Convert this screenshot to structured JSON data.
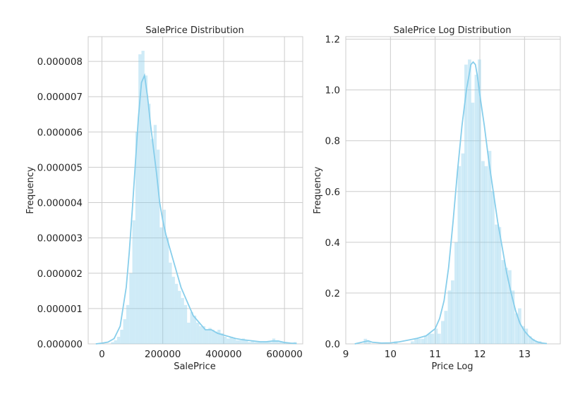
{
  "chart_data": [
    {
      "type": "histogram",
      "title": "SalePrice Distribution",
      "xlabel": "SalePrice",
      "ylabel": "Frequency",
      "xlim": [
        -45000,
        660000
      ],
      "ylim": [
        0,
        8.7e-06
      ],
      "xticks": [
        0,
        200000,
        400000,
        600000
      ],
      "xtick_labels": [
        "0",
        "200000",
        "400000",
        "600000"
      ],
      "yticks": [
        0,
        1e-06,
        2e-06,
        3e-06,
        4e-06,
        5e-06,
        6e-06,
        7e-06,
        8e-06
      ],
      "ytick_labels": [
        "0.000000",
        "0.000001",
        "0.000002",
        "0.000003",
        "0.000004",
        "0.000005",
        "0.000006",
        "0.000007",
        "0.000008"
      ],
      "grid": true,
      "color": "#87ceeb",
      "bin_width": 10000,
      "bins_x": [
        35000,
        45000,
        55000,
        65000,
        75000,
        85000,
        95000,
        105000,
        115000,
        125000,
        135000,
        145000,
        155000,
        165000,
        175000,
        185000,
        195000,
        205000,
        215000,
        225000,
        235000,
        245000,
        255000,
        265000,
        275000,
        285000,
        295000,
        305000,
        315000,
        325000,
        335000,
        345000,
        355000,
        365000,
        375000,
        385000,
        395000,
        405000,
        415000,
        425000,
        435000,
        445000,
        455000,
        465000,
        475000,
        485000,
        495000,
        505000,
        515000,
        525000,
        535000,
        545000,
        555000,
        565000,
        575000,
        585000,
        595000,
        605000,
        615000,
        625000,
        635000,
        645000,
        655000
      ],
      "bins_y": [
        5e-08,
        1e-07,
        2e-07,
        4e-07,
        7e-07,
        1.1e-06,
        2e-06,
        3.5e-06,
        6e-06,
        8.2e-06,
        8.3e-06,
        7.6e-06,
        6.8e-06,
        5.8e-06,
        6.2e-06,
        5.5e-06,
        3.3e-06,
        3.8e-06,
        3e-06,
        2.3e-06,
        1.9e-06,
        1.7e-06,
        1.5e-06,
        1.3e-06,
        1.1e-06,
        6e-07,
        9e-07,
        8e-07,
        6e-07,
        5e-07,
        5e-07,
        4e-07,
        4.5e-07,
        4e-07,
        3.5e-07,
        4e-07,
        3e-07,
        2e-07,
        1.5e-07,
        2e-07,
        1.5e-07,
        1e-07,
        1e-07,
        1.5e-07,
        1e-07,
        5e-08,
        1e-07,
        5e-08,
        5e-08,
        5e-08,
        5e-08,
        5e-08,
        5e-08,
        1.5e-07,
        1e-07,
        5e-08,
        5e-08,
        5e-08,
        0,
        0,
        5e-08,
        0,
        0
      ],
      "kde_x": [
        -20000,
        0,
        20000,
        40000,
        60000,
        80000,
        90000,
        100000,
        110000,
        120000,
        130000,
        140000,
        150000,
        160000,
        170000,
        180000,
        190000,
        200000,
        210000,
        220000,
        240000,
        260000,
        280000,
        300000,
        320000,
        340000,
        360000,
        380000,
        400000,
        420000,
        440000,
        460000,
        480000,
        500000,
        520000,
        540000,
        560000,
        580000,
        600000,
        620000,
        640000
      ],
      "kde_y": [
        0,
        2e-08,
        5e-08,
        1.5e-07,
        5e-07,
        1.6e-06,
        2.6e-06,
        3.8e-06,
        5.1e-06,
        6.4e-06,
        7.4e-06,
        7.6e-06,
        7e-06,
        6.2e-06,
        5.5e-06,
        4.8e-06,
        4e-06,
        3.5e-06,
        3.1e-06,
        2.8e-06,
        2.2e-06,
        1.6e-06,
        1.2e-06,
        8e-07,
        6e-07,
        4e-07,
        4e-07,
        3e-07,
        2.5e-07,
        2e-07,
        1.5e-07,
        1.2e-07,
        1e-07,
        8e-08,
        6e-08,
        6e-08,
        8e-08,
        8e-08,
        4e-08,
        2e-08,
        1e-08
      ]
    },
    {
      "type": "histogram",
      "title": "SalePrice Log Distribution",
      "xlabel": "Price Log",
      "ylabel": "Frequency",
      "xlim": [
        9.0,
        13.8
      ],
      "ylim": [
        0,
        1.21
      ],
      "xticks": [
        9,
        10,
        11,
        12,
        13
      ],
      "xtick_labels": [
        "9",
        "10",
        "11",
        "12",
        "13"
      ],
      "yticks": [
        0.0,
        0.2,
        0.4,
        0.6,
        0.8,
        1.0,
        1.2
      ],
      "ytick_labels": [
        "0.0",
        "0.2",
        "0.4",
        "0.6",
        "0.8",
        "1.0",
        "1.2"
      ],
      "grid": true,
      "color": "#87ceeb",
      "bin_width": 0.075,
      "bins_x": [
        9.44,
        9.52,
        10.12,
        10.49,
        10.57,
        10.64,
        10.72,
        10.79,
        10.87,
        10.94,
        11.02,
        11.09,
        11.17,
        11.24,
        11.32,
        11.39,
        11.47,
        11.54,
        11.62,
        11.69,
        11.77,
        11.84,
        11.92,
        11.99,
        12.07,
        12.14,
        12.22,
        12.29,
        12.37,
        12.44,
        12.52,
        12.59,
        12.67,
        12.74,
        12.82,
        12.89,
        12.97,
        13.04,
        13.12,
        13.19,
        13.27,
        13.34
      ],
      "bins_y": [
        0.02,
        0.01,
        0.01,
        0.01,
        0.02,
        0.02,
        0.02,
        0.03,
        0.04,
        0.04,
        0.06,
        0.04,
        0.09,
        0.13,
        0.21,
        0.25,
        0.4,
        0.7,
        0.75,
        1.1,
        1.12,
        0.95,
        1.06,
        1.12,
        0.72,
        0.7,
        0.76,
        0.6,
        0.47,
        0.46,
        0.33,
        0.3,
        0.29,
        0.21,
        0.12,
        0.14,
        0.07,
        0.06,
        0.03,
        0.02,
        0.01,
        0.01
      ],
      "kde_x": [
        9.2,
        9.4,
        9.5,
        9.6,
        9.8,
        10.0,
        10.2,
        10.4,
        10.6,
        10.8,
        11.0,
        11.1,
        11.2,
        11.3,
        11.4,
        11.5,
        11.6,
        11.7,
        11.8,
        11.85,
        11.9,
        11.95,
        12.0,
        12.1,
        12.2,
        12.3,
        12.4,
        12.5,
        12.6,
        12.7,
        12.8,
        12.9,
        13.0,
        13.1,
        13.2,
        13.3,
        13.4,
        13.5
      ],
      "kde_y": [
        0,
        0.008,
        0.012,
        0.006,
        0.003,
        0.004,
        0.008,
        0.015,
        0.022,
        0.032,
        0.06,
        0.1,
        0.17,
        0.3,
        0.48,
        0.68,
        0.86,
        1.0,
        1.1,
        1.11,
        1.1,
        1.05,
        0.98,
        0.86,
        0.72,
        0.6,
        0.48,
        0.38,
        0.28,
        0.2,
        0.13,
        0.08,
        0.05,
        0.03,
        0.015,
        0.007,
        0.003,
        0.001
      ]
    }
  ]
}
